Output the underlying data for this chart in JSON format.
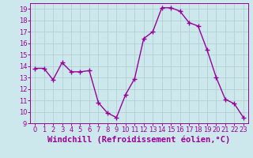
{
  "x": [
    0,
    1,
    2,
    3,
    4,
    5,
    6,
    7,
    8,
    9,
    10,
    11,
    12,
    13,
    14,
    15,
    16,
    17,
    18,
    19,
    20,
    21,
    22,
    23
  ],
  "y": [
    13.8,
    13.8,
    12.8,
    14.3,
    13.5,
    13.5,
    13.6,
    10.8,
    9.9,
    9.5,
    11.5,
    12.9,
    16.4,
    17.0,
    19.1,
    19.1,
    18.8,
    17.8,
    17.5,
    15.4,
    13.0,
    11.1,
    10.7,
    9.5
  ],
  "line_color": "#990099",
  "marker": "+",
  "marker_size": 4,
  "bg_color": "#cce8ed",
  "grid_color": "#aacccc",
  "xlabel": "Windchill (Refroidissement éolien,°C)",
  "xlim": [
    -0.5,
    23.5
  ],
  "ylim": [
    9,
    19.5
  ],
  "yticks": [
    9,
    10,
    11,
    12,
    13,
    14,
    15,
    16,
    17,
    18,
    19
  ],
  "xticks": [
    0,
    1,
    2,
    3,
    4,
    5,
    6,
    7,
    8,
    9,
    10,
    11,
    12,
    13,
    14,
    15,
    16,
    17,
    18,
    19,
    20,
    21,
    22,
    23
  ],
  "tick_color": "#990099",
  "label_color": "#990099",
  "tick_fontsize": 6,
  "xlabel_fontsize": 7.5,
  "linewidth": 1.0,
  "marker_linewidth": 1.0
}
